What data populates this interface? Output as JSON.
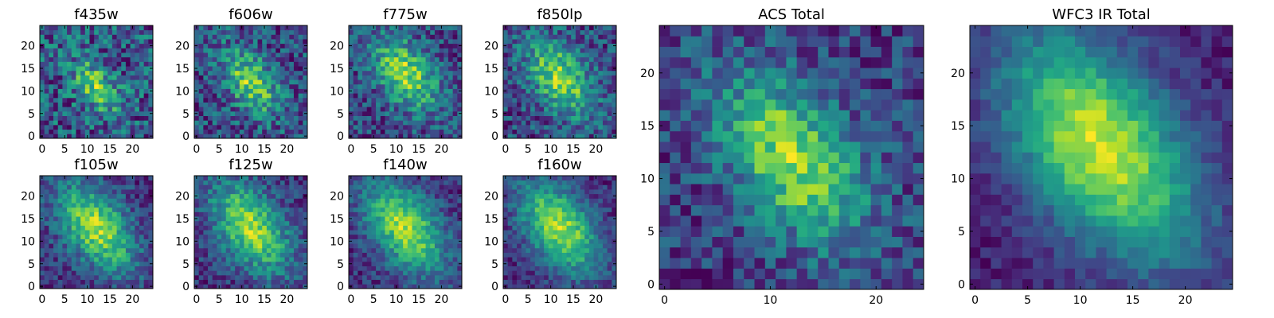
{
  "chart_data": [
    {
      "type": "heatmap",
      "title": "f435w",
      "grid_size": [
        25,
        25
      ],
      "xlim": [
        0,
        24
      ],
      "ylim": [
        0,
        24
      ],
      "xticks": [
        0,
        5,
        10,
        15,
        20
      ],
      "yticks": [
        0,
        5,
        10,
        15,
        20
      ],
      "colormap": "viridis",
      "center": [
        12,
        11
      ],
      "elongation": 0.5,
      "peak": 0.45,
      "noise": 0.55,
      "seed": 11
    },
    {
      "type": "heatmap",
      "title": "f606w",
      "grid_size": [
        25,
        25
      ],
      "xlim": [
        0,
        24
      ],
      "ylim": [
        0,
        24
      ],
      "xticks": [
        0,
        5,
        10,
        15,
        20
      ],
      "yticks": [
        0,
        5,
        10,
        15,
        20
      ],
      "colormap": "viridis",
      "center": [
        12,
        12
      ],
      "elongation": 0.7,
      "peak": 0.55,
      "noise": 0.5,
      "seed": 23
    },
    {
      "type": "heatmap",
      "title": "f775w",
      "grid_size": [
        25,
        25
      ],
      "xlim": [
        0,
        24
      ],
      "ylim": [
        0,
        24
      ],
      "xticks": [
        0,
        5,
        10,
        15,
        20
      ],
      "yticks": [
        0,
        5,
        10,
        15,
        20
      ],
      "colormap": "viridis",
      "center": [
        12,
        14
      ],
      "elongation": 1.0,
      "peak": 0.6,
      "noise": 0.45,
      "seed": 37
    },
    {
      "type": "heatmap",
      "title": "f850lp",
      "grid_size": [
        25,
        25
      ],
      "xlim": [
        0,
        24
      ],
      "ylim": [
        0,
        24
      ],
      "xticks": [
        0,
        5,
        10,
        15,
        20
      ],
      "yticks": [
        0,
        5,
        10,
        15,
        20
      ],
      "colormap": "viridis",
      "center": [
        12,
        13
      ],
      "elongation": 1.0,
      "peak": 0.6,
      "noise": 0.45,
      "seed": 41
    },
    {
      "type": "heatmap",
      "title": "f105w",
      "grid_size": [
        25,
        25
      ],
      "xlim": [
        0,
        24
      ],
      "ylim": [
        0,
        24
      ],
      "xticks": [
        0,
        5,
        10,
        15,
        20
      ],
      "yticks": [
        0,
        5,
        10,
        15,
        20
      ],
      "colormap": "viridis",
      "center": [
        12,
        13
      ],
      "elongation": 1.4,
      "peak": 0.7,
      "noise": 0.35,
      "seed": 53
    },
    {
      "type": "heatmap",
      "title": "f125w",
      "grid_size": [
        25,
        25
      ],
      "xlim": [
        0,
        24
      ],
      "ylim": [
        0,
        24
      ],
      "xticks": [
        0,
        5,
        10,
        15,
        20
      ],
      "yticks": [
        0,
        5,
        10,
        15,
        20
      ],
      "colormap": "viridis",
      "center": [
        12,
        13
      ],
      "elongation": 1.4,
      "peak": 0.7,
      "noise": 0.35,
      "seed": 67
    },
    {
      "type": "heatmap",
      "title": "f140w",
      "grid_size": [
        25,
        25
      ],
      "xlim": [
        0,
        24
      ],
      "ylim": [
        0,
        24
      ],
      "xticks": [
        0,
        5,
        10,
        15,
        20
      ],
      "yticks": [
        0,
        5,
        10,
        15,
        20
      ],
      "colormap": "viridis",
      "center": [
        12,
        13
      ],
      "elongation": 1.5,
      "peak": 0.75,
      "noise": 0.32,
      "seed": 71
    },
    {
      "type": "heatmap",
      "title": "f160w",
      "grid_size": [
        25,
        25
      ],
      "xlim": [
        0,
        24
      ],
      "ylim": [
        0,
        24
      ],
      "xticks": [
        0,
        5,
        10,
        15,
        20
      ],
      "yticks": [
        0,
        5,
        10,
        15,
        20
      ],
      "colormap": "viridis",
      "center": [
        12,
        13
      ],
      "elongation": 1.5,
      "peak": 0.78,
      "noise": 0.3,
      "seed": 83
    },
    {
      "type": "heatmap",
      "title": "ACS Total",
      "grid_size": [
        25,
        25
      ],
      "xlim": [
        0,
        24
      ],
      "ylim": [
        0,
        24
      ],
      "xticks": [
        0,
        10,
        20
      ],
      "yticks": [
        0,
        5,
        10,
        15,
        20
      ],
      "colormap": "viridis",
      "center": [
        12,
        12
      ],
      "elongation": 0.9,
      "peak": 0.6,
      "noise": 0.35,
      "seed": 97
    },
    {
      "type": "heatmap",
      "title": "WFC3 IR Total",
      "grid_size": [
        25,
        25
      ],
      "xlim": [
        0,
        24
      ],
      "ylim": [
        0,
        24
      ],
      "xticks": [
        0,
        5,
        10,
        15,
        20
      ],
      "yticks": [
        0,
        5,
        10,
        15,
        20
      ],
      "colormap": "viridis",
      "center": [
        12,
        13
      ],
      "elongation": 1.6,
      "peak": 0.8,
      "noise": 0.18,
      "seed": 101
    }
  ]
}
